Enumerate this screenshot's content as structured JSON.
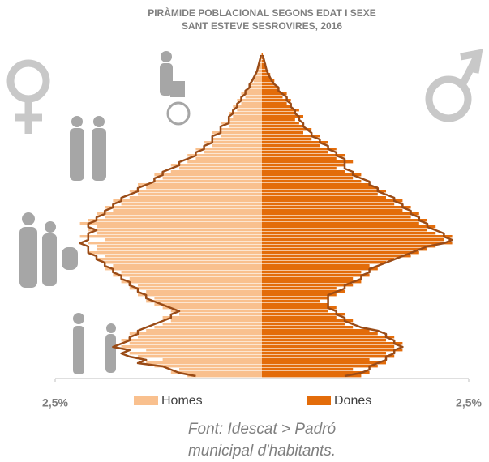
{
  "chart_data": {
    "type": "pyramid",
    "title": "PIRÀMIDE POBLACIONAL SEGONS EDAT I SEXE",
    "subtitle": "SANT ESTEVE SESROVIRES, 2016",
    "source": [
      "Font: Idescat > Padró",
      "municipal d'habitants."
    ],
    "xlim": [
      -2.5,
      2.5
    ],
    "xticks": [
      {
        "value": -2.5,
        "label": "2,5%"
      },
      {
        "value": 2.5,
        "label": "2,5%"
      }
    ],
    "series": [
      {
        "name": "Homes",
        "color": "#f9c08e",
        "side": "left",
        "values": [
          0.9,
          1.1,
          1.0,
          1.3,
          1.4,
          1.2,
          1.5,
          1.6,
          1.4,
          1.7,
          1.6,
          1.7,
          1.5,
          1.6,
          1.4,
          1.3,
          1.2,
          1.1,
          1.2,
          1.0,
          1.1,
          1.2,
          1.3,
          1.4,
          1.3,
          1.5,
          1.4,
          1.6,
          1.5,
          1.7,
          1.6,
          1.8,
          1.7,
          1.9,
          1.8,
          1.9,
          2.0,
          1.9,
          2.1,
          2.0,
          2.0,
          2.1,
          1.9,
          2.2,
          2.0,
          2.1,
          2.0,
          2.2,
          2.1,
          1.9,
          2.0,
          1.8,
          1.9,
          1.7,
          1.8,
          1.6,
          1.5,
          1.6,
          1.4,
          1.5,
          1.3,
          1.2,
          1.3,
          1.1,
          1.0,
          1.1,
          0.9,
          0.8,
          0.9,
          0.7,
          0.8,
          0.6,
          0.7,
          0.6,
          0.5,
          0.6,
          0.5,
          0.4,
          0.5,
          0.4,
          0.35,
          0.4,
          0.3,
          0.35,
          0.25,
          0.3,
          0.2,
          0.25,
          0.2,
          0.15,
          0.15,
          0.1,
          0.1,
          0.08,
          0.05,
          0.05,
          0.03,
          0.02,
          0.02,
          0.01
        ]
      },
      {
        "name": "Dones",
        "color": "#e36c0a",
        "side": "right",
        "values": [
          1.2,
          1.3,
          1.1,
          1.4,
          1.5,
          1.3,
          1.6,
          1.5,
          1.7,
          1.6,
          1.7,
          1.5,
          1.6,
          1.4,
          1.3,
          1.1,
          1.0,
          1.1,
          0.9,
          1.0,
          0.8,
          0.9,
          0.8,
          0.7,
          0.8,
          0.9,
          1.0,
          0.9,
          1.1,
          1.2,
          1.1,
          1.3,
          1.2,
          1.4,
          1.3,
          1.5,
          1.6,
          1.8,
          1.9,
          2.0,
          2.1,
          2.3,
          2.2,
          2.3,
          2.1,
          2.0,
          2.1,
          1.9,
          2.0,
          1.8,
          1.9,
          1.7,
          1.8,
          1.6,
          1.7,
          1.5,
          1.4,
          1.5,
          1.4,
          1.3,
          1.2,
          1.1,
          1.2,
          1.0,
          0.9,
          1.0,
          1.1,
          0.9,
          1.0,
          0.8,
          0.9,
          0.7,
          0.8,
          0.6,
          0.7,
          0.5,
          0.6,
          0.5,
          0.45,
          0.4,
          0.5,
          0.4,
          0.45,
          0.35,
          0.3,
          0.35,
          0.25,
          0.3,
          0.2,
          0.2,
          0.15,
          0.15,
          0.1,
          0.1,
          0.08,
          0.05,
          0.05,
          0.03,
          0.02,
          0.01
        ]
      },
      {
        "type": "line",
        "color": "#9a4b16",
        "side": "left",
        "values": [
          0.8,
          1.0,
          1.1,
          1.2,
          1.5,
          1.4,
          1.6,
          1.7,
          1.6,
          1.8,
          1.7,
          1.6,
          1.6,
          1.5,
          1.5,
          1.4,
          1.3,
          1.2,
          1.1,
          1.1,
          1.0,
          1.1,
          1.2,
          1.3,
          1.4,
          1.4,
          1.5,
          1.5,
          1.6,
          1.6,
          1.7,
          1.7,
          1.8,
          1.8,
          1.9,
          1.9,
          2.0,
          2.0,
          2.1,
          2.1,
          2.1,
          2.2,
          2.1,
          2.1,
          2.1,
          2.0,
          2.1,
          2.1,
          2.0,
          2.0,
          1.9,
          1.9,
          1.8,
          1.8,
          1.7,
          1.7,
          1.6,
          1.5,
          1.5,
          1.4,
          1.3,
          1.3,
          1.2,
          1.2,
          1.1,
          1.0,
          1.0,
          0.9,
          0.8,
          0.8,
          0.7,
          0.7,
          0.6,
          0.6,
          0.6,
          0.5,
          0.5,
          0.5,
          0.4,
          0.4,
          0.4,
          0.35,
          0.35,
          0.3,
          0.3,
          0.25,
          0.25,
          0.2,
          0.2,
          0.15,
          0.15,
          0.12,
          0.1,
          0.08,
          0.06,
          0.05,
          0.04,
          0.03,
          0.02,
          0.01
        ]
      },
      {
        "type": "line",
        "color": "#9a4b16",
        "side": "right",
        "values": [
          1.0,
          1.2,
          1.3,
          1.3,
          1.4,
          1.5,
          1.5,
          1.6,
          1.6,
          1.7,
          1.6,
          1.6,
          1.5,
          1.5,
          1.4,
          1.2,
          1.1,
          1.0,
          1.0,
          0.9,
          0.9,
          0.8,
          0.8,
          0.8,
          0.8,
          0.8,
          0.9,
          1.0,
          1.0,
          1.1,
          1.2,
          1.2,
          1.3,
          1.3,
          1.4,
          1.5,
          1.6,
          1.7,
          1.8,
          1.9,
          2.0,
          2.2,
          2.3,
          2.2,
          2.2,
          2.1,
          2.0,
          2.0,
          1.9,
          1.9,
          1.8,
          1.8,
          1.7,
          1.7,
          1.6,
          1.6,
          1.5,
          1.4,
          1.4,
          1.3,
          1.3,
          1.2,
          1.1,
          1.1,
          1.0,
          1.0,
          1.0,
          1.0,
          0.9,
          0.9,
          0.8,
          0.8,
          0.7,
          0.7,
          0.6,
          0.6,
          0.55,
          0.5,
          0.5,
          0.45,
          0.45,
          0.4,
          0.4,
          0.35,
          0.35,
          0.3,
          0.3,
          0.25,
          0.2,
          0.2,
          0.15,
          0.12,
          0.1,
          0.08,
          0.06,
          0.05,
          0.04,
          0.03,
          0.02,
          0.01
        ]
      }
    ]
  }
}
